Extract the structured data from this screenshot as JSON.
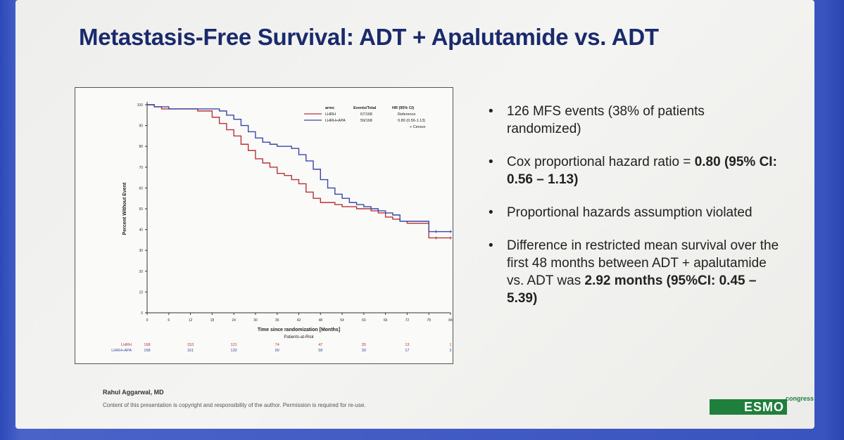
{
  "slide": {
    "title": "Metastasis-Free Survival: ADT + Apalutamide vs. ADT",
    "bullets": [
      {
        "parts": [
          {
            "text": "126 MFS events (38% of patients randomized)",
            "bold": false
          }
        ]
      },
      {
        "parts": [
          {
            "text": "Cox proportional hazard ratio = ",
            "bold": false
          },
          {
            "text": "0.80",
            "bold": true
          },
          {
            "text": " ",
            "bold": false
          },
          {
            "text": "(95% CI: 0.56 – 1.13)",
            "bold": true
          }
        ]
      },
      {
        "parts": [
          {
            "text": "Proportional hazards assumption violated",
            "bold": false
          }
        ]
      },
      {
        "parts": [
          {
            "text": "Difference in restricted mean survival over the first 48 months between ADT + apalutamide vs. ADT was ",
            "bold": false
          },
          {
            "text": "2.92 months (95%CI: 0.45 – 5.39)",
            "bold": true
          }
        ]
      }
    ],
    "author": "Rahul Aggarwal, MD",
    "note": "Content of this presentation is copyright and responsibility of the author. Permission is required for re-use.",
    "logo": "ESMO",
    "logo_sub": "congress"
  },
  "chart_data": {
    "type": "line",
    "xlabel": "Time since randomization [Months]",
    "ylabel": "Percent Without Event",
    "xlim": [
      0,
      84
    ],
    "ylim": [
      0,
      100
    ],
    "xticks": [
      0,
      6,
      12,
      18,
      24,
      30,
      36,
      42,
      48,
      54,
      60,
      66,
      72,
      78,
      84
    ],
    "yticks": [
      0,
      10,
      20,
      30,
      40,
      50,
      60,
      70,
      80,
      90,
      100
    ],
    "legend": {
      "header": [
        "armc",
        "Events/Total",
        "HR (95% CI)"
      ],
      "censor_label": "+ Censor",
      "placement": "top-right"
    },
    "series": [
      {
        "name": "LHRH",
        "color": "#b8333a",
        "events_total": "67/168",
        "hr": "Reference",
        "x": [
          0,
          2,
          4,
          6,
          10,
          14,
          18,
          20,
          22,
          24,
          26,
          28,
          30,
          32,
          34,
          36,
          38,
          40,
          42,
          44,
          46,
          48,
          50,
          52,
          54,
          56,
          58,
          60,
          62,
          64,
          66,
          68,
          70,
          72,
          74,
          76,
          78,
          80,
          84
        ],
        "y": [
          100,
          99,
          98,
          98,
          98,
          97,
          94,
          91,
          88,
          85,
          81,
          78,
          74,
          72,
          70,
          67,
          66,
          64,
          62,
          58,
          55,
          53,
          53,
          52,
          51,
          51,
          50,
          50,
          49,
          48,
          46,
          45,
          44,
          43,
          43,
          43,
          36,
          36,
          36
        ],
        "at_risk": [
          168,
          153,
          121,
          74,
          47,
          35,
          13,
          1
        ]
      },
      {
        "name": "LHRH+APA",
        "color": "#3a47a8",
        "events_total": "59/168",
        "hr": "0.80 (0.56-1.13)",
        "x": [
          0,
          2,
          4,
          6,
          10,
          14,
          18,
          20,
          22,
          24,
          26,
          28,
          30,
          32,
          34,
          36,
          38,
          40,
          42,
          44,
          46,
          48,
          50,
          52,
          54,
          56,
          58,
          60,
          62,
          64,
          66,
          68,
          70,
          72,
          74,
          76,
          78,
          80,
          84
        ],
        "y": [
          100,
          99,
          99,
          98,
          98,
          98,
          98,
          97,
          95,
          93,
          90,
          87,
          84,
          82,
          81,
          80,
          80,
          79,
          76,
          73,
          69,
          64,
          60,
          57,
          55,
          53,
          52,
          51,
          50,
          49,
          48,
          47,
          44,
          44,
          44,
          44,
          39,
          39,
          39
        ],
        "at_risk": [
          168,
          161,
          132,
          90,
          58,
          30,
          17,
          2
        ]
      }
    ],
    "at_risk_title": "Patients-at-Risk",
    "at_risk_x": [
      0,
      12,
      24,
      36,
      48,
      60,
      72,
      84
    ],
    "grid": false
  }
}
